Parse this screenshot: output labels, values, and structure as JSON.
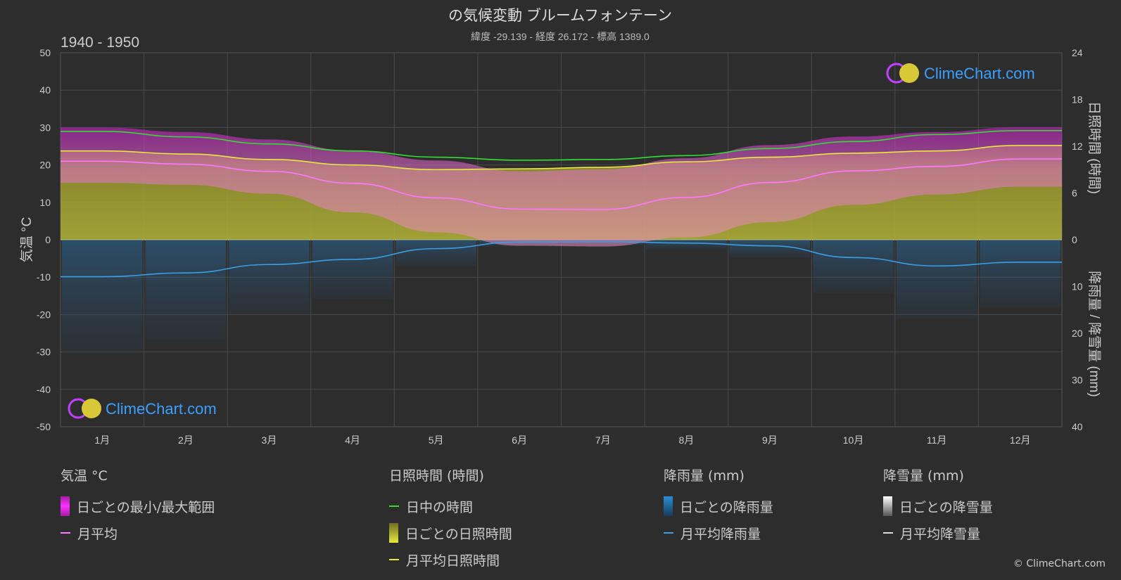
{
  "header": {
    "title": "の気候変動 ブルームフォンテーン",
    "subtitle": "緯度 -29.139 - 経度 26.172 - 標高 1389.0",
    "period": "1940 - 1950"
  },
  "logo": {
    "text": "ClimeChart.com"
  },
  "copyright": "© ClimeChart.com",
  "legend": {
    "temperature": {
      "title": "気温 °C",
      "range_label": "日ごとの最小/最大範囲",
      "mean_label": "月平均"
    },
    "sunshine": {
      "title": "日照時間 (時間)",
      "daylight_label": "日中の時間",
      "daily_label": "日ごとの日照時間",
      "mean_label": "月平均日照時間"
    },
    "rain": {
      "title": "降雨量 (mm)",
      "daily_label": "日ごとの降雨量",
      "mean_label": "月平均降雨量"
    },
    "snow": {
      "title": "降雪量 (mm)",
      "daily_label": "日ごとの降雪量",
      "mean_label": "月平均降雪量"
    }
  },
  "colors": {
    "background": "#2d2d2d",
    "temp_range": "#e040e0",
    "temp_mean": "#ff77ff",
    "daylight": "#33dd33",
    "sunshine_fill": "#a8a832",
    "sunshine_mean": "#e8e840",
    "rain": "#2a8fd6",
    "rain_mean": "#3a9fe6",
    "snow": "#dddddd"
  },
  "chart_data": {
    "type": "line",
    "x": [
      "1月",
      "2月",
      "3月",
      "4月",
      "5月",
      "6月",
      "7月",
      "8月",
      "9月",
      "10月",
      "11月",
      "12月"
    ],
    "y_left": {
      "label": "気温 °C",
      "range": [
        -50,
        50
      ],
      "ticks": [
        50,
        40,
        30,
        20,
        10,
        0,
        -10,
        -20,
        -30,
        -40,
        -50
      ]
    },
    "y_right_top": {
      "label": "日照時間 (時間)",
      "range": [
        0,
        24
      ],
      "ticks": [
        24,
        18,
        12,
        6,
        0
      ]
    },
    "y_right_bottom": {
      "label": "降雨量 / 降雪量 (mm)",
      "range": [
        0,
        40
      ],
      "ticks": [
        0,
        10,
        20,
        30,
        40
      ]
    },
    "grid": true,
    "series": [
      {
        "name": "日中の時間",
        "axis": "sunshine",
        "values": [
          13.9,
          13.2,
          12.3,
          11.4,
          10.6,
          10.2,
          10.3,
          10.8,
          11.7,
          12.6,
          13.5,
          14.0
        ]
      },
      {
        "name": "月平均日照時間",
        "axis": "sunshine",
        "values": [
          11.4,
          11.0,
          10.3,
          9.6,
          9.0,
          9.1,
          9.3,
          10.0,
          10.6,
          11.1,
          11.4,
          12.1
        ]
      },
      {
        "name": "月平均",
        "axis": "temperature",
        "values": [
          21.0,
          20.2,
          18.3,
          15.1,
          11.2,
          8.2,
          8.1,
          11.3,
          15.3,
          18.4,
          19.6,
          21.6
        ]
      },
      {
        "name": "日ごとの最小/最大範囲 (max)",
        "axis": "temperature",
        "values": [
          30.0,
          28.8,
          26.8,
          23.8,
          21.2,
          18.3,
          18.8,
          21.8,
          25.3,
          27.6,
          28.8,
          30.1
        ]
      },
      {
        "name": "日ごとの最小/最大範囲 (min)",
        "axis": "temperature",
        "values": [
          15.2,
          14.7,
          12.3,
          7.3,
          2.0,
          -1.6,
          -1.8,
          0.6,
          4.7,
          9.3,
          12.1,
          14.2
        ]
      },
      {
        "name": "月平均降雨量",
        "axis": "rain",
        "values": [
          7.9,
          7.1,
          5.3,
          4.2,
          1.9,
          0.5,
          0.4,
          0.7,
          1.3,
          3.8,
          5.6,
          4.8
        ]
      },
      {
        "name": "月平均降雪量",
        "axis": "rain",
        "values": [
          0,
          0,
          0,
          0,
          0,
          0,
          0,
          0,
          0,
          0,
          0,
          0
        ]
      }
    ]
  }
}
